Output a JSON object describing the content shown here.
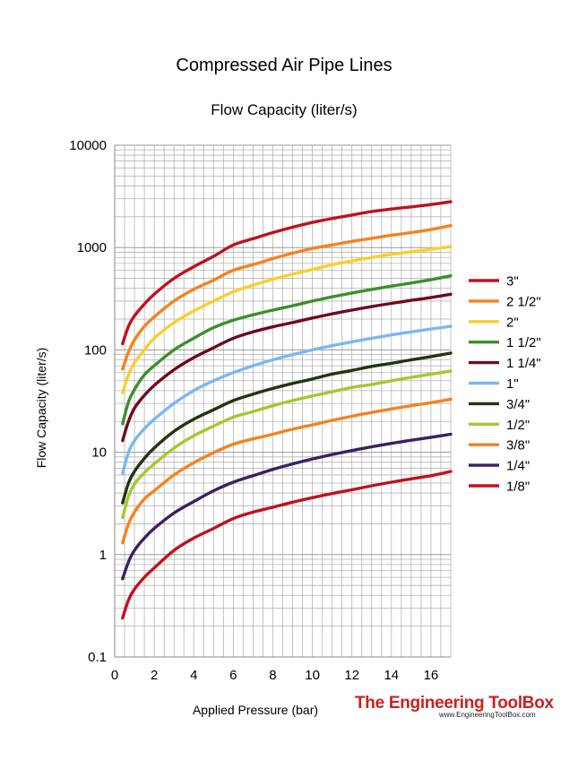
{
  "chart_data": {
    "type": "line",
    "title": "Compressed Air Pipe Lines",
    "subtitle": "Flow Capacity (liter/s)",
    "xlabel": "Applied Pressure (bar)",
    "ylabel": "Flow Capacity (liter/s)",
    "xlim": [
      0,
      17
    ],
    "ylim": [
      0.1,
      10000
    ],
    "yscale": "log",
    "grid": true,
    "legend_position": "right",
    "x_ticks": [
      "0",
      "2",
      "4",
      "6",
      "8",
      "10",
      "12",
      "14",
      "16"
    ],
    "y_ticks": [
      "0.1",
      "1",
      "10",
      "100",
      "1000",
      "10000"
    ],
    "x": [
      0.4,
      0.7,
      1,
      1.5,
      2,
      3,
      4,
      5,
      6,
      7,
      8,
      9,
      10,
      11,
      12,
      13,
      14,
      15,
      16,
      17
    ],
    "series": [
      {
        "name": "3\"",
        "color": "#c0111f",
        "values": [
          115,
          170,
          215,
          280,
          350,
          500,
          650,
          820,
          1060,
          1220,
          1400,
          1580,
          1760,
          1920,
          2080,
          2250,
          2380,
          2500,
          2630,
          2800
        ]
      },
      {
        "name": "2 1/2\"",
        "color": "#f58220",
        "values": [
          65,
          95,
          125,
          170,
          210,
          300,
          390,
          480,
          600,
          680,
          780,
          880,
          980,
          1060,
          1150,
          1230,
          1320,
          1400,
          1500,
          1640
        ]
      },
      {
        "name": "2\"",
        "color": "#f9cf2b",
        "values": [
          38,
          57,
          75,
          100,
          130,
          185,
          240,
          300,
          370,
          430,
          490,
          550,
          610,
          680,
          740,
          800,
          860,
          910,
          960,
          1020
        ]
      },
      {
        "name": "1 1/2\"",
        "color": "#3d8f2a",
        "values": [
          19,
          31,
          41,
          57,
          70,
          100,
          130,
          165,
          195,
          220,
          245,
          270,
          300,
          330,
          360,
          390,
          420,
          450,
          485,
          530
        ]
      },
      {
        "name": "1 1/4\"",
        "color": "#6e0a1e",
        "values": [
          13,
          20,
          27,
          36,
          45,
          64,
          84,
          105,
          130,
          150,
          168,
          185,
          205,
          225,
          245,
          265,
          285,
          305,
          325,
          350
        ]
      },
      {
        "name": "1\"",
        "color": "#7ab8f0",
        "values": [
          6.2,
          10,
          13,
          17,
          21,
          30,
          40,
          50,
          60,
          70,
          80,
          90,
          100,
          110,
          120,
          130,
          140,
          150,
          160,
          170
        ]
      },
      {
        "name": "3/4\"",
        "color": "#23340f",
        "values": [
          3.2,
          5,
          6.5,
          8.7,
          11,
          16,
          21,
          26,
          32,
          37,
          42,
          47,
          52,
          58,
          63,
          69,
          74,
          80,
          86,
          93
        ]
      },
      {
        "name": "1/2\"",
        "color": "#a2c92f",
        "values": [
          2.3,
          3.7,
          4.9,
          6.3,
          7.7,
          11,
          14.5,
          18,
          22,
          25,
          28.5,
          32,
          35.5,
          39,
          43,
          46,
          50,
          54,
          58,
          62
        ]
      },
      {
        "name": "3/8\"",
        "color": "#f58220",
        "values": [
          1.3,
          2,
          2.6,
          3.5,
          4.2,
          6,
          7.9,
          9.9,
          12,
          13.5,
          15,
          16.8,
          18.5,
          20.5,
          22.5,
          24.5,
          26.5,
          28.5,
          30.5,
          33
        ]
      },
      {
        "name": "1/4\"",
        "color": "#3b2061",
        "values": [
          0.58,
          0.85,
          1.1,
          1.45,
          1.8,
          2.55,
          3.3,
          4.2,
          5.1,
          5.9,
          6.8,
          7.7,
          8.6,
          9.5,
          10.4,
          11.3,
          12.2,
          13.1,
          14,
          15
        ]
      },
      {
        "name": "1/8\"",
        "color": "#c0111f",
        "values": [
          0.24,
          0.36,
          0.46,
          0.6,
          0.74,
          1.1,
          1.45,
          1.8,
          2.25,
          2.6,
          2.9,
          3.25,
          3.6,
          3.95,
          4.3,
          4.7,
          5.1,
          5.5,
          5.9,
          6.5
        ]
      }
    ]
  },
  "logo": {
    "name": "The Engineering ToolBox",
    "url": "www.EngineeringToolBox.com"
  }
}
